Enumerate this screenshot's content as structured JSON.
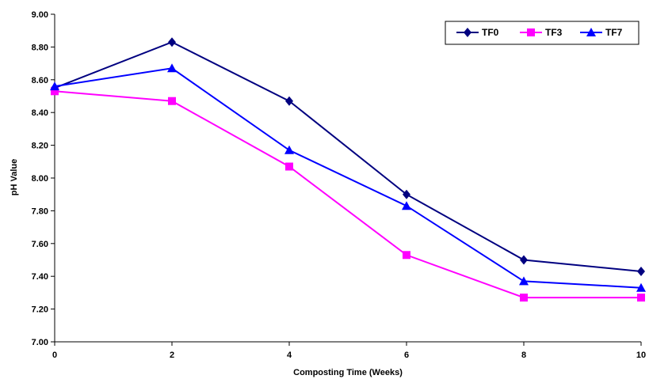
{
  "chart_data": {
    "type": "line",
    "xlabel": "Composting Time (Weeks)",
    "ylabel": "pH Value",
    "x": [
      0,
      2,
      4,
      6,
      8,
      10
    ],
    "xlim": [
      0,
      10
    ],
    "ylim": [
      7.0,
      9.0
    ],
    "xticks": [
      0,
      2,
      4,
      6,
      8,
      10
    ],
    "yticks": [
      7.0,
      7.2,
      7.4,
      7.6,
      7.8,
      8.0,
      8.2,
      8.4,
      8.6,
      8.8,
      9.0
    ],
    "ytick_labels": [
      "7.00",
      "7.20",
      "7.40",
      "7.60",
      "7.80",
      "8.00",
      "8.20",
      "8.40",
      "8.60",
      "8.80",
      "9.00"
    ],
    "grid": false,
    "legend_position": "top-right",
    "series": [
      {
        "name": "TF0",
        "values": [
          8.55,
          8.83,
          8.47,
          7.9,
          7.5,
          7.43
        ],
        "color": "#000080",
        "marker": "diamond"
      },
      {
        "name": "TF3",
        "values": [
          8.53,
          8.47,
          8.07,
          7.53,
          7.27,
          7.27
        ],
        "color": "#FF00FF",
        "marker": "square"
      },
      {
        "name": "TF7",
        "values": [
          8.56,
          8.67,
          8.17,
          7.83,
          7.37,
          7.33
        ],
        "color": "#0000FF",
        "marker": "triangle"
      }
    ]
  }
}
